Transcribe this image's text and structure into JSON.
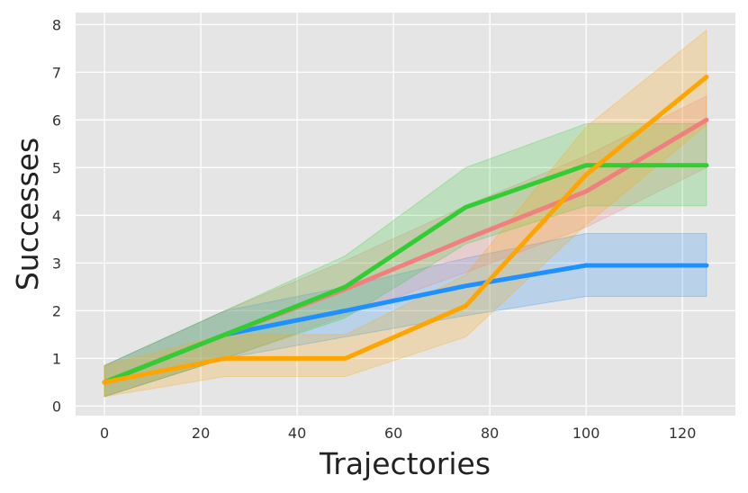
{
  "chart_data": {
    "type": "line",
    "title": "",
    "xlabel": "Trajectories",
    "ylabel": "Successes",
    "x": [
      0,
      25,
      50,
      75,
      100,
      125
    ],
    "xlim": [
      -6,
      131
    ],
    "ylim": [
      -0.2,
      8.25
    ],
    "xticks": [
      0,
      20,
      40,
      60,
      80,
      100,
      120
    ],
    "yticks": [
      0,
      1,
      2,
      3,
      4,
      5,
      6,
      7,
      8
    ],
    "grid": true,
    "legend": "none",
    "background": "#e5e5e5",
    "series": [
      {
        "color": "#1e90ff",
        "values": [
          0.5,
          1.5,
          2.0,
          2.52,
          2.95,
          2.95
        ],
        "lower": [
          0.2,
          1.0,
          1.45,
          1.9,
          2.3,
          2.3
        ],
        "upper": [
          0.85,
          2.0,
          2.5,
          3.1,
          3.62,
          3.62
        ]
      },
      {
        "color": "#f08080",
        "values": [
          0.5,
          1.5,
          2.45,
          3.5,
          4.5,
          6.0
        ],
        "lower": [
          0.2,
          1.0,
          1.9,
          2.8,
          3.75,
          5.0
        ],
        "upper": [
          0.85,
          2.0,
          3.05,
          4.2,
          5.25,
          6.5
        ]
      },
      {
        "color": "#32cd32",
        "values": [
          0.5,
          1.5,
          2.5,
          4.17,
          5.05,
          5.05
        ],
        "lower": [
          0.2,
          1.0,
          1.85,
          3.4,
          4.2,
          4.2
        ],
        "upper": [
          0.85,
          2.0,
          3.15,
          5.0,
          5.92,
          5.92
        ]
      },
      {
        "color": "#ffa500",
        "values": [
          0.5,
          1.0,
          1.0,
          2.1,
          4.85,
          6.9
        ],
        "lower": [
          0.2,
          0.62,
          0.62,
          1.45,
          3.8,
          5.9
        ],
        "upper": [
          0.85,
          1.5,
          1.5,
          2.75,
          5.85,
          7.88
        ]
      }
    ]
  }
}
